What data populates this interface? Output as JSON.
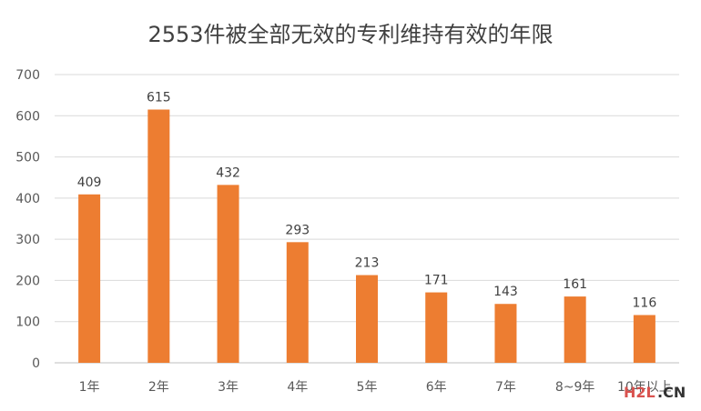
{
  "chart_data": {
    "type": "bar",
    "title": "2553件被全部无效的专利维持有效的年限",
    "categories": [
      "1年",
      "2年",
      "3年",
      "4年",
      "5年",
      "6年",
      "7年",
      "8~9年",
      "10年以上"
    ],
    "values": [
      409,
      615,
      432,
      293,
      213,
      171,
      143,
      161,
      116
    ],
    "ylim": [
      0,
      700
    ],
    "yticks": [
      0,
      100,
      200,
      300,
      400,
      500,
      600,
      700
    ],
    "xlabel": "",
    "ylabel": "",
    "grid": true,
    "bar_color": "#ED7D31",
    "data_labels": true
  },
  "watermark": {
    "brand": "H2L",
    "suffix": ".CN"
  }
}
